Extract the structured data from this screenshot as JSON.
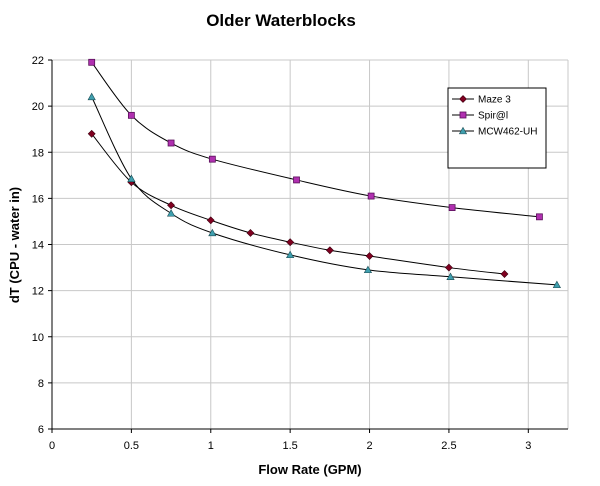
{
  "chart_data": {
    "type": "line",
    "title": "Older Waterblocks",
    "xlabel": "Flow Rate (GPM)",
    "ylabel": "dT (CPU - water in)",
    "xlim": [
      0,
      3.25
    ],
    "ylim": [
      6,
      22
    ],
    "xticks": [
      0,
      0.5,
      1,
      1.5,
      2,
      2.5,
      3
    ],
    "xtick_labels": [
      "0",
      "0.5",
      "1",
      "1.5",
      "2",
      "2.5",
      "3"
    ],
    "yticks": [
      6,
      8,
      10,
      12,
      14,
      16,
      18,
      20,
      22
    ],
    "ytick_labels": [
      "6",
      "8",
      "10",
      "12",
      "14",
      "16",
      "18",
      "20",
      "22"
    ],
    "grid": true,
    "legend_position": "top-right",
    "series": [
      {
        "name": "Maze 3",
        "marker": "diamond",
        "color": "#800020",
        "points": [
          [
            0.25,
            18.8
          ],
          [
            0.5,
            16.7
          ],
          [
            0.75,
            15.7
          ],
          [
            1.0,
            15.05
          ],
          [
            1.25,
            14.5
          ],
          [
            1.5,
            14.1
          ],
          [
            1.75,
            13.75
          ],
          [
            2.0,
            13.5
          ],
          [
            2.5,
            13.0
          ],
          [
            2.85,
            12.72
          ]
        ]
      },
      {
        "name": "Spir@l",
        "marker": "square",
        "color": "#b030b0",
        "points": [
          [
            0.25,
            21.9
          ],
          [
            0.5,
            19.6
          ],
          [
            0.75,
            18.4
          ],
          [
            1.01,
            17.7
          ],
          [
            1.54,
            16.8
          ],
          [
            2.01,
            16.1
          ],
          [
            2.52,
            15.6
          ],
          [
            3.07,
            15.2
          ]
        ]
      },
      {
        "name": "MCW462-UH",
        "marker": "triangle",
        "color": "#3f9fae",
        "points": [
          [
            0.25,
            20.4
          ],
          [
            0.5,
            16.85
          ],
          [
            0.75,
            15.35
          ],
          [
            1.01,
            14.5
          ],
          [
            1.5,
            13.55
          ],
          [
            1.99,
            12.9
          ],
          [
            2.51,
            12.6
          ],
          [
            3.18,
            12.25
          ]
        ]
      }
    ]
  }
}
